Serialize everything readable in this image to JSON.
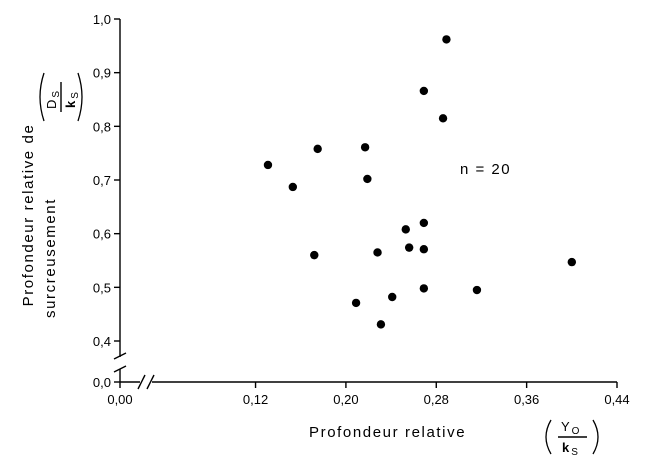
{
  "chart_data": {
    "type": "scatter",
    "title": "",
    "xlabel": "Profondeur relative",
    "xlabel_fraction": {
      "numerator": "Y",
      "numerator_sub": "O",
      "denominator": "k",
      "denominator_sub": "S"
    },
    "ylabel_line1": "Profondeur relative de",
    "ylabel_line2": "surcreusement",
    "ylabel_fraction": {
      "numerator": "D",
      "numerator_sub": "S",
      "denominator": "k",
      "denominator_sub": "S"
    },
    "xlim": [
      0.0,
      0.44
    ],
    "ylim": [
      0.0,
      1.0
    ],
    "y_axis_break": true,
    "x_axis_break": true,
    "x_ticks": [
      {
        "value": 0.0,
        "label": "0,00"
      },
      {
        "value": 0.12,
        "label": "0,12"
      },
      {
        "value": 0.2,
        "label": "0,20"
      },
      {
        "value": 0.28,
        "label": "0,28"
      },
      {
        "value": 0.36,
        "label": "0,36"
      },
      {
        "value": 0.44,
        "label": "0,44"
      }
    ],
    "y_ticks": [
      {
        "value": 0.0,
        "label": "0,0"
      },
      {
        "value": 0.4,
        "label": "0,4"
      },
      {
        "value": 0.5,
        "label": "0,5"
      },
      {
        "value": 0.6,
        "label": "0,6"
      },
      {
        "value": 0.7,
        "label": "0,7"
      },
      {
        "value": 0.8,
        "label": "0,8"
      },
      {
        "value": 0.9,
        "label": "0,9"
      },
      {
        "value": 1.0,
        "label": "1,0"
      }
    ],
    "annotation": "n = 20",
    "grid": false,
    "points": [
      {
        "x": 0.131,
        "y": 0.728
      },
      {
        "x": 0.153,
        "y": 0.687
      },
      {
        "x": 0.172,
        "y": 0.56
      },
      {
        "x": 0.175,
        "y": 0.758
      },
      {
        "x": 0.209,
        "y": 0.471
      },
      {
        "x": 0.217,
        "y": 0.761
      },
      {
        "x": 0.219,
        "y": 0.702
      },
      {
        "x": 0.228,
        "y": 0.565
      },
      {
        "x": 0.231,
        "y": 0.431
      },
      {
        "x": 0.241,
        "y": 0.482
      },
      {
        "x": 0.253,
        "y": 0.608
      },
      {
        "x": 0.256,
        "y": 0.574
      },
      {
        "x": 0.269,
        "y": 0.62
      },
      {
        "x": 0.269,
        "y": 0.571
      },
      {
        "x": 0.269,
        "y": 0.498
      },
      {
        "x": 0.269,
        "y": 0.866
      },
      {
        "x": 0.286,
        "y": 0.815
      },
      {
        "x": 0.289,
        "y": 0.962
      },
      {
        "x": 0.316,
        "y": 0.495
      },
      {
        "x": 0.4,
        "y": 0.547
      }
    ]
  }
}
